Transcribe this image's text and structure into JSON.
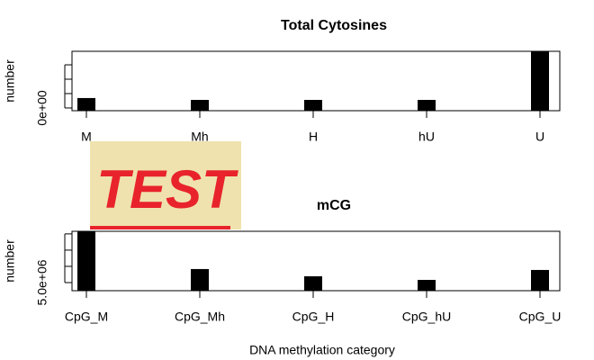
{
  "chart_data": [
    {
      "type": "bar",
      "title": "Total Cytosines",
      "ylabel": "number",
      "categories": [
        "M",
        "Mh",
        "H",
        "hU",
        "U"
      ],
      "values": [
        6900000,
        5600000,
        5600000,
        5600000,
        39400000
      ],
      "color": "#000000",
      "ylim": [
        -1900000,
        39400000
      ],
      "yticks": [
        {
          "value": 0,
          "label": "0e+00"
        }
      ],
      "yminor": [
        10000000,
        20000000,
        30000000
      ]
    },
    {
      "type": "bar",
      "title": "mCG",
      "ylabel": "number",
      "xlabel": "DNA methylation category",
      "categories": [
        "CpG_M",
        "CpG_Mh",
        "CpG_H",
        "CpG_hU",
        "CpG_U"
      ],
      "values": [
        20800000,
        9170000,
        6940000,
        5830000,
        8890000
      ],
      "color": "#000000",
      "ylim": [
        2500000,
        20800000
      ],
      "yticks": [
        {
          "value": 5000000,
          "label": "5.0e+06"
        }
      ],
      "yminor": [
        10000000,
        15000000,
        20000000
      ]
    }
  ],
  "watermark": "TEST"
}
